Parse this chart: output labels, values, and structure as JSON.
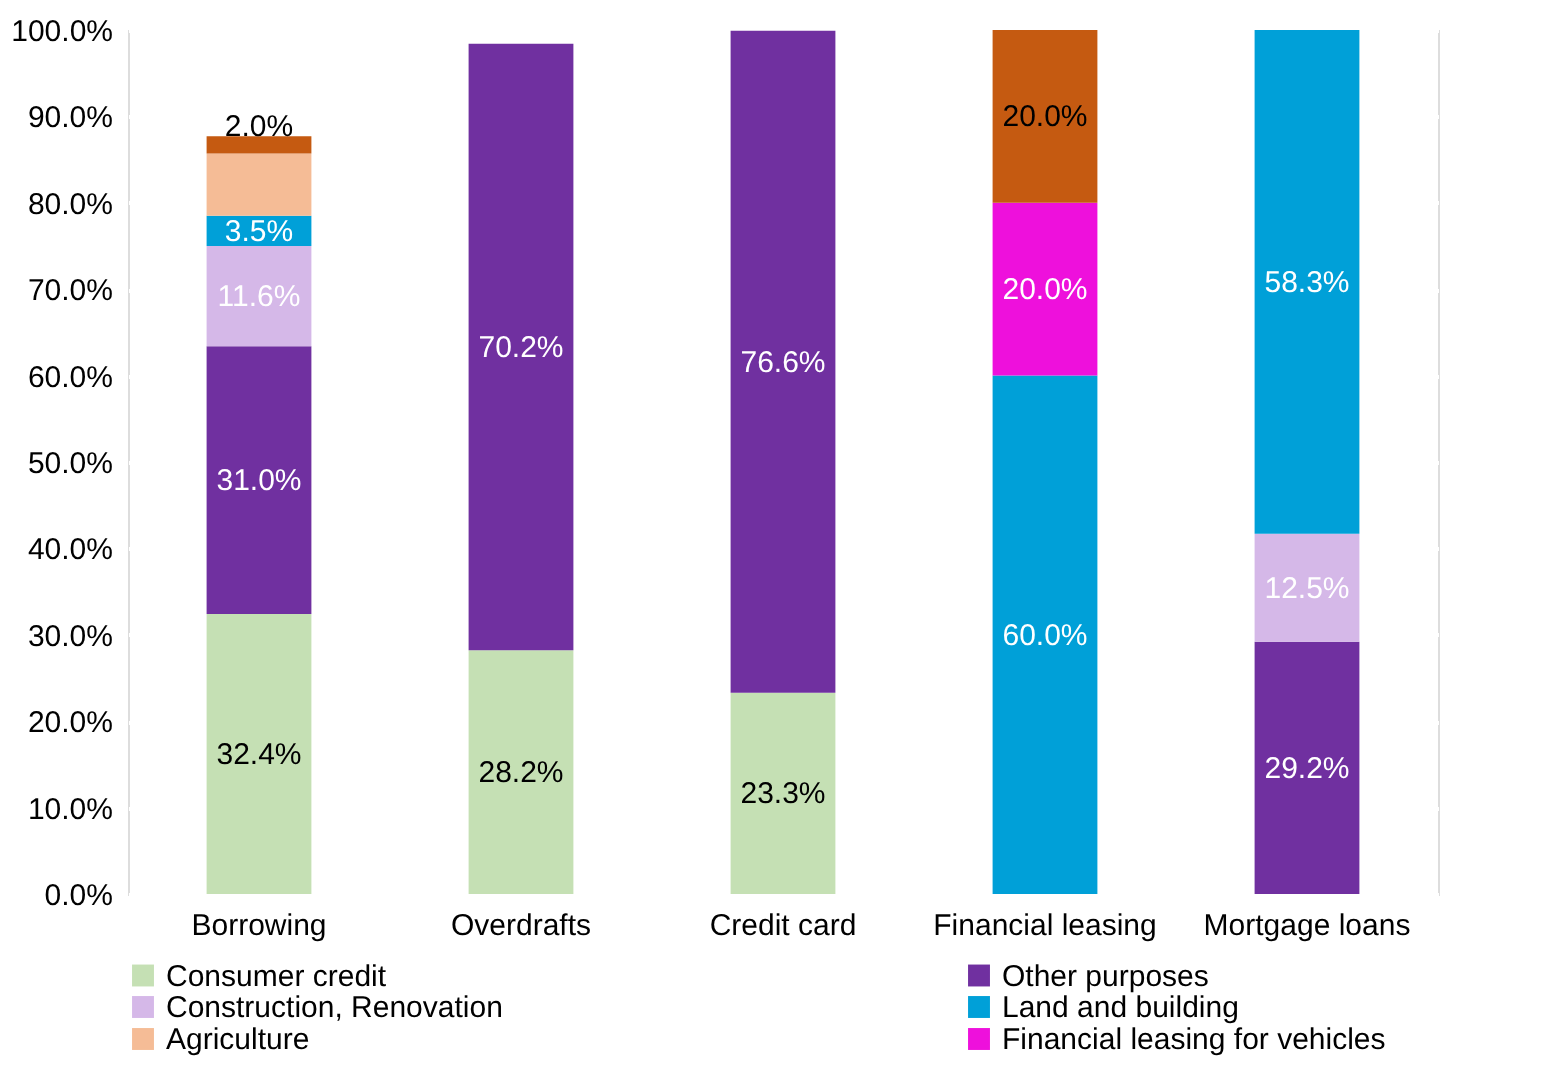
{
  "chart_data": {
    "type": "bar",
    "stacked": true,
    "categories": [
      "Borrowing",
      "Overdrafts",
      "Credit card",
      "Financial leasing",
      "Mortgage loans"
    ],
    "series": [
      {
        "name": "Consumer credit",
        "color": "#c5e0b4",
        "values": [
          32.4,
          28.2,
          23.3,
          null,
          null
        ],
        "value_labels": [
          "32.4%",
          "28.2%",
          "23.3%",
          null,
          null
        ]
      },
      {
        "name": "Other purposes",
        "color": "#7030a0",
        "values": [
          31.0,
          70.2,
          76.6,
          null,
          29.2
        ],
        "value_labels": [
          "31.0%",
          "70.2%",
          "76.6%",
          null,
          "29.2%"
        ]
      },
      {
        "name": "Construction, Renovation",
        "color": "#d5b8e8",
        "values": [
          11.6,
          null,
          null,
          null,
          12.5
        ],
        "value_labels": [
          "11.6%",
          null,
          null,
          null,
          "12.5%"
        ]
      },
      {
        "name": "Land and building",
        "color": "#00a0d8",
        "values": [
          3.5,
          null,
          null,
          60.0,
          58.3
        ],
        "value_labels": [
          "3.5%",
          null,
          null,
          "60.0%",
          "58.3%"
        ]
      },
      {
        "name": "Agriculture",
        "color": "#f5bc96",
        "values": [
          7.2,
          null,
          null,
          null,
          null
        ],
        "value_labels": [
          null,
          null,
          null,
          null,
          null
        ]
      },
      {
        "name": "Financial leasing for vehicles",
        "color": "#ee10dc",
        "values": [
          null,
          null,
          null,
          20.0,
          null
        ],
        "value_labels": [
          null,
          null,
          null,
          "20.0%",
          null
        ]
      },
      {
        "color": "#c55a11",
        "values": [
          2.0,
          null,
          null,
          20.0,
          null
        ],
        "value_labels": [
          "2.0%",
          null,
          null,
          "20.0%",
          null
        ]
      }
    ],
    "ylim": [
      0,
      100
    ],
    "yticks": [
      {
        "value": 0,
        "label": "0.0%"
      },
      {
        "value": 10,
        "label": "10.0%"
      },
      {
        "value": 20,
        "label": "20.0%"
      },
      {
        "value": 30,
        "label": "30.0%"
      },
      {
        "value": 40,
        "label": "40.0%"
      },
      {
        "value": 50,
        "label": "50.0%"
      },
      {
        "value": 60,
        "label": "60.0%"
      },
      {
        "value": 70,
        "label": "70.0%"
      },
      {
        "value": 80,
        "label": "80.0%"
      },
      {
        "value": 90,
        "label": "90.0%"
      },
      {
        "value": 100,
        "label": "100.0%"
      }
    ],
    "grid": true,
    "legend": "bottom"
  }
}
